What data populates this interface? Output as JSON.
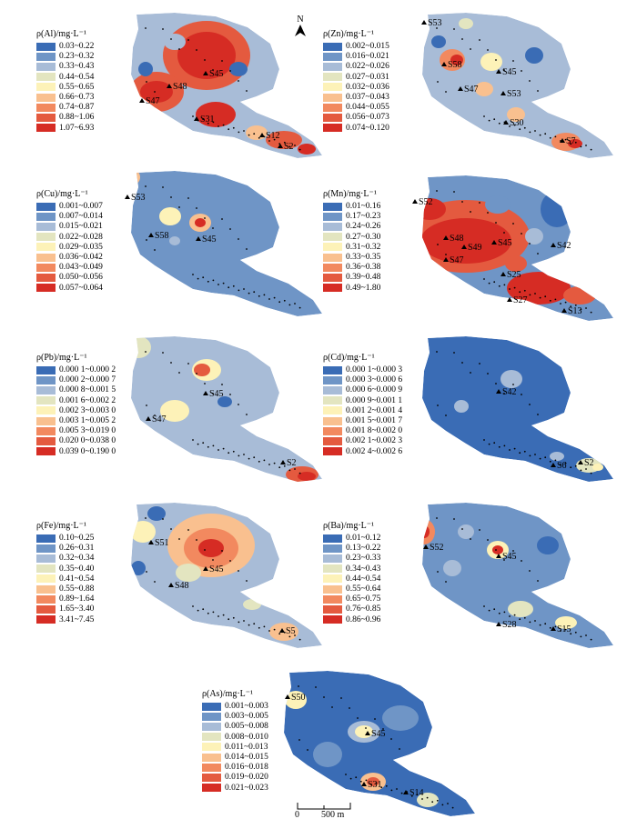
{
  "north_label": "N",
  "scale": {
    "zero": "0",
    "distance": "500 m"
  },
  "colors": [
    "#3a6cb5",
    "#6f95c6",
    "#a8bcd7",
    "#e3e5c0",
    "#fdf2b8",
    "#f9c08f",
    "#f2895f",
    "#e45a3f",
    "#d62c24"
  ],
  "panels": [
    {
      "id": "al",
      "title": "ρ(Al)/mg·L⁻¹",
      "ranges": [
        "0.03~0.22",
        "0.23~0.32",
        "0.33~0.43",
        "0.44~0.54",
        "0.55~0.65",
        "0.66~0.73",
        "0.74~0.87",
        "0.88~1.06",
        "1.07~6.93"
      ],
      "sites": [
        "S45",
        "S48",
        "S47",
        "S31",
        "S12",
        "S2"
      ]
    },
    {
      "id": "zn",
      "title": "ρ(Zn)/mg·L⁻¹",
      "ranges": [
        "0.002~0.015",
        "0.016~0.021",
        "0.022~0.026",
        "0.027~0.031",
        "0.032~0.036",
        "0.037~0.043",
        "0.044~0.055",
        "0.056~0.073",
        "0.074~0.120"
      ],
      "sites": [
        "S53",
        "S58",
        "S45",
        "S47",
        "S53",
        "S30",
        "S7"
      ]
    },
    {
      "id": "cu",
      "title": "ρ(Cu)/mg·L⁻¹",
      "ranges": [
        "0.001~0.007",
        "0.007~0.014",
        "0.015~0.021",
        "0.022~0.028",
        "0.029~0.035",
        "0.036~0.042",
        "0.043~0.049",
        "0.050~0.056",
        "0.057~0.064"
      ],
      "sites": [
        "S53",
        "S58",
        "S45"
      ]
    },
    {
      "id": "mn",
      "title": "ρ(Mn)/mg·L⁻¹",
      "ranges": [
        "0.01~0.16",
        "0.17~0.23",
        "0.24~0.26",
        "0.27~0.30",
        "0.31~0.32",
        "0.33~0.35",
        "0.36~0.38",
        "0.39~0.48",
        "0.49~1.80"
      ],
      "sites": [
        "S52",
        "S48",
        "S49",
        "S45",
        "S42",
        "S47",
        "S25",
        "S27",
        "S13"
      ]
    },
    {
      "id": "pb",
      "title": "ρ(Pb)/mg·L⁻¹",
      "ranges": [
        "0.000 1~0.000 2",
        "0.000 2~0.000 7",
        "0.000 8~0.001 5",
        "0.001 6~0.002 2",
        "0.002 3~0.003 0",
        "0.003 1~0.005 2",
        "0.005 3~0.019 0",
        "0.020 0~0.038 0",
        "0.039 0~0.190 0"
      ],
      "sites": [
        "S45",
        "S47",
        "S2"
      ]
    },
    {
      "id": "cd",
      "title": "ρ(Cd)/mg·L⁻¹",
      "ranges": [
        "0.000 1~0.000 3",
        "0.000 3~0.000 6",
        "0.000 6~0.000 9",
        "0.000 9~0.001 1",
        "0.001 2~0.001 4",
        "0.001 5~0.001 7",
        "0.001 8~0.002 0",
        "0.002 1~0.002 3",
        "0.002 4~0.002 6"
      ],
      "sites": [
        "S42",
        "S6",
        "S2"
      ]
    },
    {
      "id": "fe",
      "title": "ρ(Fe)/mg·L⁻¹",
      "ranges": [
        "0.10~0.25",
        "0.26~0.31",
        "0.32~0.34",
        "0.35~0.40",
        "0.41~0.54",
        "0.55~0.88",
        "0.89~1.64",
        "1.65~3.40",
        "3.41~7.45"
      ],
      "sites": [
        "S51",
        "S45",
        "S48",
        "S5"
      ]
    },
    {
      "id": "ba",
      "title": "ρ(Ba)/mg·L⁻¹",
      "ranges": [
        "0.01~0.12",
        "0.13~0.22",
        "0.23~0.33",
        "0.34~0.43",
        "0.44~0.54",
        "0.55~0.64",
        "0.65~0.75",
        "0.76~0.85",
        "0.86~0.96"
      ],
      "sites": [
        "S52",
        "S45",
        "S28",
        "S15"
      ]
    },
    {
      "id": "as",
      "title": "ρ(As)/mg·L⁻¹",
      "ranges": [
        "0.001~0.003",
        "0.003~0.005",
        "0.005~0.008",
        "0.008~0.010",
        "0.011~0.013",
        "0.014~0.015",
        "0.016~0.018",
        "0.019~0.020",
        "0.021~0.023"
      ],
      "sites": [
        "S50",
        "S45",
        "S31",
        "S14"
      ]
    }
  ]
}
